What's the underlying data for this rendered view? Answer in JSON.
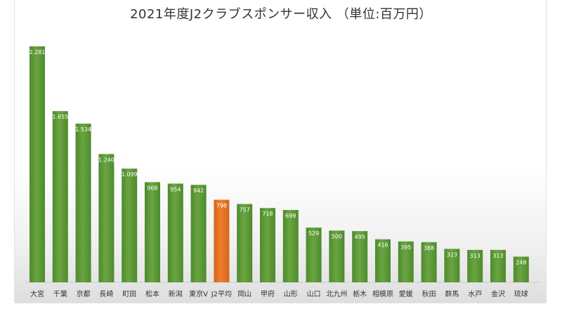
{
  "chart_data": {
    "type": "bar",
    "title": "2021年度J2クラブスポンサー収入 （単位:百万円）",
    "categories": [
      "大宮",
      "千葉",
      "京都",
      "長崎",
      "町田",
      "松本",
      "新潟",
      "東京V",
      "J2平均",
      "岡山",
      "甲府",
      "山形",
      "山口",
      "北九州",
      "栃木",
      "相模原",
      "愛媛",
      "秋田",
      "群馬",
      "水戸",
      "金沢",
      "琉球"
    ],
    "values": [
      2281,
      1655,
      1534,
      1240,
      1099,
      968,
      954,
      942,
      798,
      757,
      718,
      699,
      529,
      500,
      495,
      416,
      395,
      388,
      323,
      313,
      313,
      248
    ],
    "value_labels": [
      "2.281",
      "1.655",
      "1.534",
      "1.240",
      "1.099",
      "968",
      "954",
      "942",
      "798",
      "757",
      "718",
      "699",
      "529",
      "500",
      "495",
      "416",
      "395",
      "388",
      "323",
      "313",
      "313",
      "248"
    ],
    "highlight_category": "J2平均",
    "colors": {
      "bar": "#6aa541",
      "bar_dark": "#4e8a2d",
      "highlight": "#ef7f2c",
      "highlight_dark": "#d2661a"
    },
    "ylim": [
      0,
      2300
    ],
    "grid": false,
    "legend": "none"
  }
}
